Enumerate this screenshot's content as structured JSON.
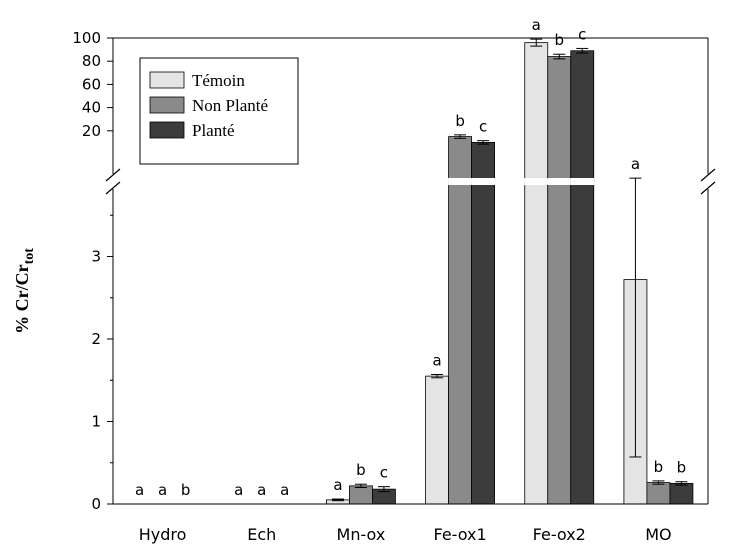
{
  "chart_data": {
    "type": "bar",
    "title": "",
    "xlabel": "",
    "ylabel": "% Cr/Cr",
    "ylabel_sub": "tot",
    "y_axis_break": true,
    "ylim_lower": [
      0,
      3.9
    ],
    "ylim_upper": [
      10,
      100
    ],
    "yticks_lower": [
      "0",
      "1",
      "2",
      "3"
    ],
    "yticks_upper": [
      "20",
      "40",
      "60",
      "80",
      "100"
    ],
    "categories": [
      "Hydro",
      "Ech",
      "Mn-ox",
      "Fe-ox1",
      "Fe-ox2",
      "MO"
    ],
    "series": [
      {
        "name": "Témoin",
        "color": "#e4e4e4",
        "values": [
          0,
          0,
          0.05,
          1.55,
          96,
          2.72
        ],
        "errors": [
          0,
          0,
          0.01,
          0.02,
          3,
          2.15
        ],
        "significance": [
          "a",
          "a",
          "a",
          "a",
          "a",
          "a"
        ]
      },
      {
        "name": "Non Planté",
        "color": "#8a8a8a",
        "values": [
          0,
          0,
          0.22,
          15,
          84,
          0.26
        ],
        "errors": [
          0,
          0,
          0.02,
          1.5,
          2,
          0.02
        ],
        "significance": [
          "a",
          "a",
          "b",
          "b",
          "b",
          "b"
        ]
      },
      {
        "name": "Planté",
        "color": "#3c3c3c",
        "values": [
          0,
          0,
          0.18,
          10,
          89,
          0.25
        ],
        "errors": [
          0,
          0,
          0.03,
          1.5,
          2,
          0.02
        ],
        "significance": [
          "b",
          "a",
          "c",
          "c",
          "c",
          "b"
        ]
      }
    ],
    "legend": {
      "position": "top-left",
      "entries": [
        "Témoin",
        "Non Planté",
        "Planté"
      ]
    },
    "grid": false
  }
}
